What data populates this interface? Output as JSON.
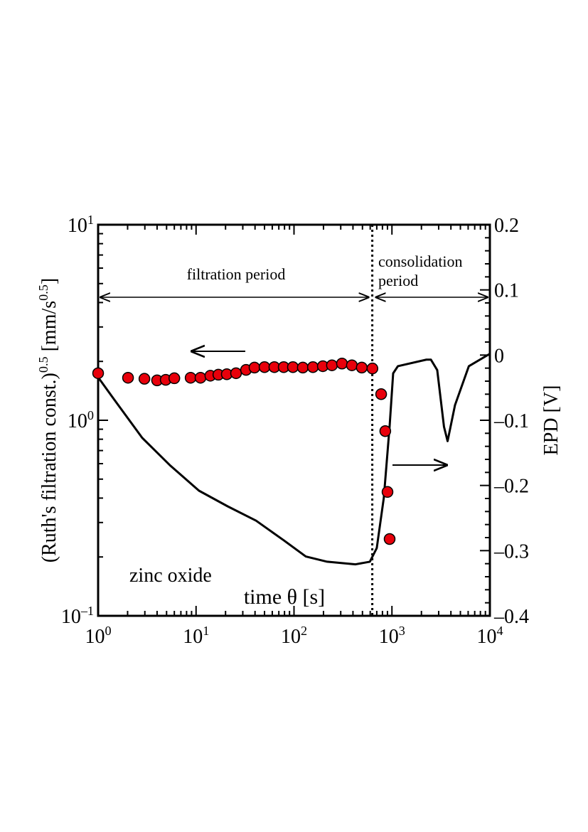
{
  "chart_data": {
    "type": "combo",
    "x_label": "time θ  [s]",
    "y_label": "(Ruth's filtration const.)^{0.5}  [mm/s^{0.5}]",
    "y2_label": "EPD  [V]",
    "x_log": true,
    "y_log": true,
    "xlim": [
      1,
      10000
    ],
    "xticks": [
      {
        "value": 1,
        "label": "10^{0}"
      },
      {
        "value": 10,
        "label": "10^{1}"
      },
      {
        "value": 100,
        "label": "10^{2}"
      },
      {
        "value": 1000,
        "label": "10^{3}"
      },
      {
        "value": 10000,
        "label": "10^{4}"
      }
    ],
    "ylim": [
      0.1,
      10
    ],
    "yticks": [
      {
        "value": 0.1,
        "label": "10^{–1}"
      },
      {
        "value": 1,
        "label": "10^{0}"
      },
      {
        "value": 10,
        "label": "10^{1}"
      }
    ],
    "y2lim": [
      -0.4,
      0.2
    ],
    "y2ticks": [
      {
        "value": -0.4,
        "label": "–0.4"
      },
      {
        "value": -0.3,
        "label": "–0.3"
      },
      {
        "value": -0.2,
        "label": "–0.2"
      },
      {
        "value": -0.1,
        "label": "–0.1"
      },
      0,
      0.1,
      0.2
    ],
    "divider_x": 630,
    "annotations": [
      "filtration period",
      "consolidation",
      "period",
      "zinc oxide"
    ],
    "series": [
      {
        "type": "scatter",
        "color": "#e8000b",
        "x": [
          1,
          2.02,
          2.97,
          4.0,
          4.9,
          6.0,
          8.8,
          11.1,
          14.0,
          16.9,
          20.6,
          25.6,
          32.4,
          39.5,
          50,
          63,
          78.5,
          97.5,
          123,
          156,
          197,
          244,
          309,
          390,
          492,
          632,
          776,
          855,
          901,
          947
        ],
        "values": [
          1.74,
          1.65,
          1.63,
          1.6,
          1.61,
          1.64,
          1.65,
          1.65,
          1.69,
          1.71,
          1.72,
          1.74,
          1.81,
          1.86,
          1.87,
          1.87,
          1.87,
          1.87,
          1.86,
          1.87,
          1.89,
          1.91,
          1.95,
          1.91,
          1.86,
          1.84,
          1.36,
          0.88,
          0.43,
          0.247
        ]
      },
      {
        "type": "line",
        "axis": "y2",
        "color": "#000000",
        "x": [
          1,
          1.44,
          2.82,
          5.5,
          10.7,
          21,
          41,
          80,
          132,
          218,
          425,
          595,
          700,
          826,
          946,
          1029,
          1150,
          2250,
          2500,
          2900,
          3400,
          3700,
          4400,
          6100,
          10000
        ],
        "values": [
          -0.034,
          -0.067,
          -0.127,
          -0.17,
          -0.208,
          -0.232,
          -0.254,
          -0.285,
          -0.309,
          -0.317,
          -0.321,
          -0.317,
          -0.296,
          -0.219,
          -0.11,
          -0.028,
          -0.017,
          -0.007,
          -0.007,
          -0.023,
          -0.11,
          -0.132,
          -0.077,
          -0.017,
          0.002
        ]
      }
    ]
  }
}
